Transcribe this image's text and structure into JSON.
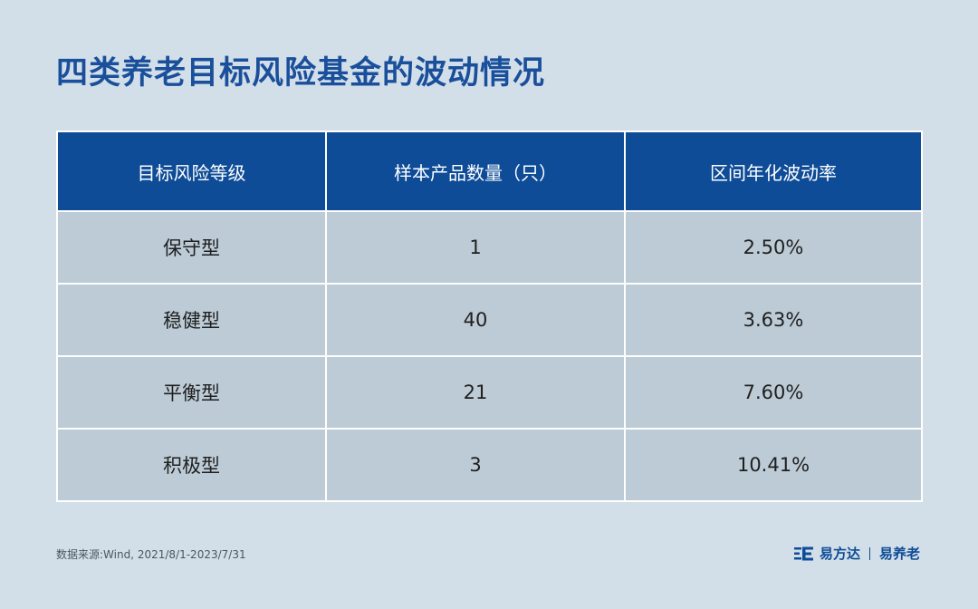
{
  "title": "四类养老目标风险基金的波动情况",
  "table": {
    "headers": [
      "目标风险等级",
      "样本产品数量（只）",
      "区间年化波动率"
    ],
    "rows": [
      [
        "保守型",
        "1",
        "2.50%"
      ],
      [
        "稳健型",
        "40",
        "3.63%"
      ],
      [
        "平衡型",
        "21",
        "7.60%"
      ],
      [
        "积极型",
        "3",
        "10.41%"
      ]
    ]
  },
  "source": "数据来源:Wind, 2021/8/1-2023/7/31",
  "logo": {
    "brand": "易方达",
    "sub": "易养老"
  },
  "colors": {
    "background": "#d3dfe8",
    "header": "#0e4c97",
    "cell": "#bccbd6",
    "title": "#1a4f9c"
  }
}
